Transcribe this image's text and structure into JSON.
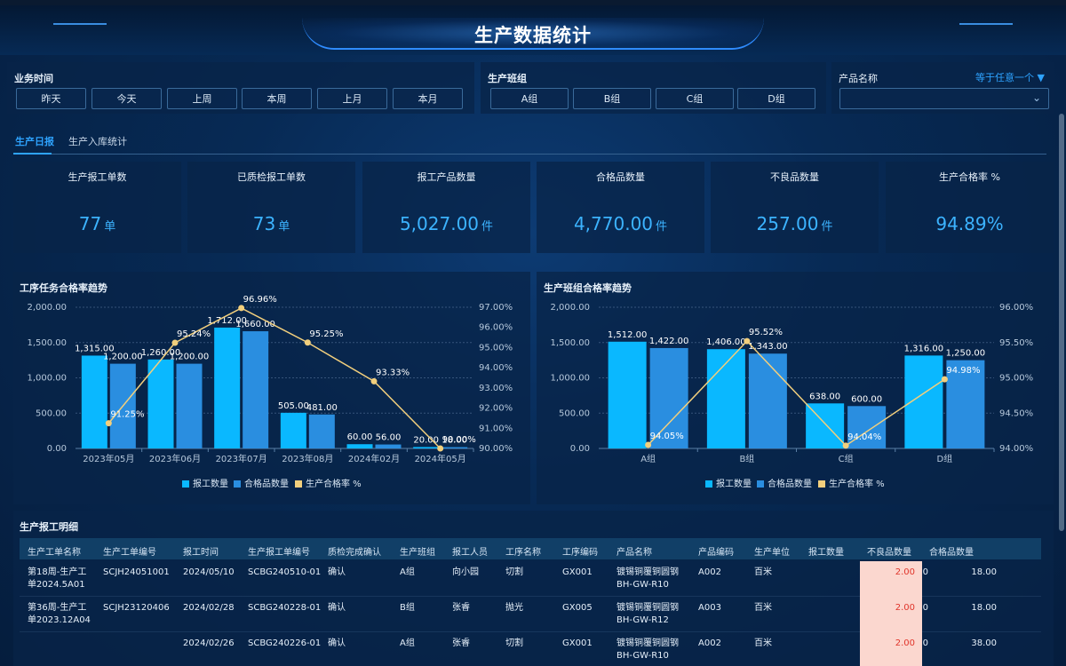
{
  "page": {
    "title": "生产数据统计"
  },
  "filters": {
    "business_time": {
      "label": "业务时间",
      "buttons": [
        "昨天",
        "今天",
        "上周",
        "本周",
        "上月",
        "本月"
      ]
    },
    "team": {
      "label": "生产班组",
      "buttons": [
        "A组",
        "B组",
        "C组",
        "D组"
      ]
    },
    "product": {
      "label": "产品名称",
      "operator": "等于任意一个",
      "value": ""
    }
  },
  "tabs": [
    "生产日报",
    "生产入库统计"
  ],
  "kpis": [
    {
      "title": "生产报工单数",
      "value": "77",
      "unit": "单"
    },
    {
      "title": "已质检报工单数",
      "value": "73",
      "unit": "单"
    },
    {
      "title": "报工产品数量",
      "value": "5,027.00",
      "unit": "件"
    },
    {
      "title": "合格品数量",
      "value": "4,770.00",
      "unit": "件"
    },
    {
      "title": "不良品数量",
      "value": "257.00",
      "unit": "件"
    },
    {
      "title": "生产合格率 %",
      "value": "94.89%",
      "unit": ""
    }
  ],
  "chart_data": [
    {
      "type": "bar",
      "title": "工序任务合格率趋势",
      "categories": [
        "2023年05月",
        "2023年06月",
        "2023年07月",
        "2023年08月",
        "2024年02月",
        "2024年05月"
      ],
      "series": [
        {
          "name": "报工数量",
          "type": "bar",
          "axis": "left",
          "values": [
            1315,
            1260,
            1712,
            505,
            60,
            20
          ],
          "labels": [
            "1,315.00",
            "1,260.00",
            "1,712.00",
            "505.00",
            "60.00",
            "20.00"
          ]
        },
        {
          "name": "合格品数量",
          "type": "bar",
          "axis": "left",
          "values": [
            1200,
            1200,
            1660,
            481,
            56,
            18
          ],
          "labels": [
            "1,200.00",
            "1,200.00",
            "1,660.00",
            "481.00",
            "56.00",
            "18.00"
          ]
        },
        {
          "name": "生产合格率 %",
          "type": "line",
          "axis": "right",
          "values": [
            91.25,
            95.24,
            96.96,
            95.25,
            93.33,
            90.0
          ],
          "labels": [
            "91.25%",
            "95.24%",
            "96.96%",
            "95.25%",
            "93.33%",
            "90.00%"
          ]
        }
      ],
      "left_axis": {
        "ylim": [
          0,
          2000
        ],
        "ticks": [
          "2,000.00",
          "1,500.00",
          "1,000.00",
          "500.00",
          "0.00"
        ]
      },
      "right_axis": {
        "ylim": [
          90,
          97
        ],
        "ticks": [
          "97.00%",
          "96.00%",
          "95.00%",
          "94.00%",
          "93.00%",
          "92.00%",
          "91.00%",
          "90.00%"
        ]
      },
      "legend": [
        "报工数量",
        "合格品数量",
        "生产合格率 %"
      ],
      "legend_position": "bottom",
      "colors": [
        "#0ab8ff",
        "#2a8ee0",
        "#f2cf7d"
      ]
    },
    {
      "type": "bar",
      "title": "生产班组合格率趋势",
      "categories": [
        "A组",
        "B组",
        "C组",
        "D组"
      ],
      "series": [
        {
          "name": "报工数量",
          "type": "bar",
          "axis": "left",
          "values": [
            1512,
            1406,
            638,
            1316
          ],
          "labels": [
            "1,512.00",
            "1,406.00",
            "638.00",
            "1,316.00"
          ]
        },
        {
          "name": "合格品数量",
          "type": "bar",
          "axis": "left",
          "values": [
            1422,
            1343,
            600,
            1250
          ],
          "labels": [
            "1,422.00",
            "1,343.00",
            "600.00",
            "1,250.00"
          ]
        },
        {
          "name": "生产合格率 %",
          "type": "line",
          "axis": "right",
          "values": [
            94.05,
            95.52,
            94.04,
            94.98
          ],
          "labels": [
            "94.05%",
            "95.52%",
            "94.04%",
            "94.98%"
          ]
        }
      ],
      "left_axis": {
        "ylim": [
          0,
          2000
        ],
        "ticks": [
          "2,000.00",
          "1,500.00",
          "1,000.00",
          "500.00",
          "0.00"
        ]
      },
      "right_axis": {
        "ylim": [
          94,
          96
        ],
        "ticks": [
          "96.00%",
          "95.50%",
          "95.00%",
          "94.50%",
          "94.00%"
        ]
      },
      "legend": [
        "报工数量",
        "合格品数量",
        "生产合格率 %"
      ],
      "legend_position": "bottom",
      "colors": [
        "#0ab8ff",
        "#2a8ee0",
        "#f2cf7d"
      ]
    }
  ],
  "table": {
    "title": "生产报工明细",
    "columns": [
      "生产工单名称",
      "生产工单编号",
      "报工时间",
      "生产报工单编号",
      "质检完成确认",
      "生产班组",
      "报工人员",
      "工序名称",
      "工序编码",
      "产品名称",
      "产品编码",
      "生产单位",
      "报工数量",
      "不良品数量",
      "合格品数量"
    ],
    "rows": [
      [
        "第18周-生产工单2024.5A01",
        "SCJH24051001",
        "2024/05/10",
        "SCBG240510-01",
        "确认",
        "A组",
        "向小园",
        "切割",
        "GX001",
        "镀锡铜覆铜圆钢BH-GW-R10",
        "A002",
        "百米",
        "20.00",
        "2.00",
        "18.00"
      ],
      [
        "第36周-生产工单2023.12A04",
        "SCJH23120406",
        "2024/02/28",
        "SCBG240228-01",
        "确认",
        "B组",
        "张睿",
        "抛光",
        "GX005",
        "镀锡铜覆铜圆钢BH-GW-R12",
        "A003",
        "百米",
        "20.00",
        "2.00",
        "18.00"
      ],
      [
        "",
        "",
        "2024/02/26",
        "SCBG240226-01",
        "确认",
        "A组",
        "张睿",
        "切割",
        "GX001",
        "镀锡铜覆铜圆钢BH-GW-R10",
        "A002",
        "百米",
        "40.00",
        "2.00",
        "38.00"
      ]
    ]
  }
}
